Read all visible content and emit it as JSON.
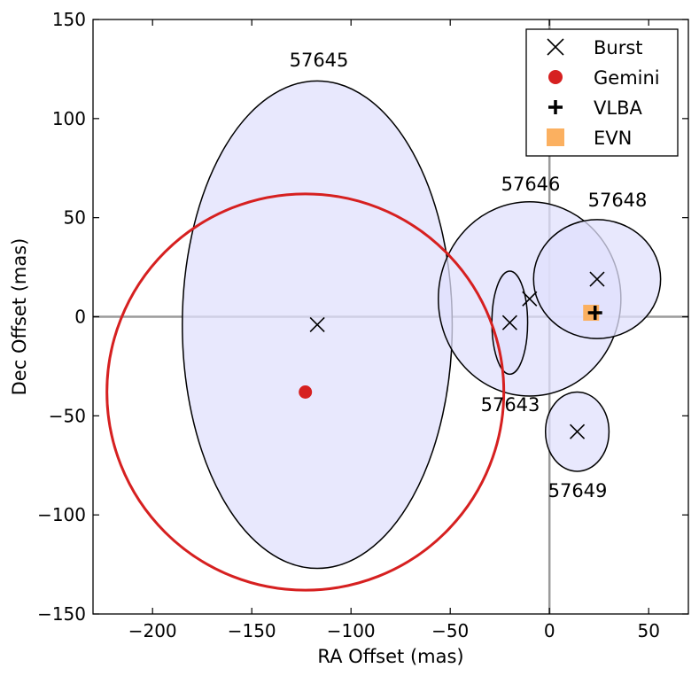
{
  "chart_data": {
    "type": "scatter",
    "xlabel": "RA Offset (mas)",
    "ylabel": "Dec Offset (mas)",
    "xlim": [
      -230,
      70
    ],
    "ylim": [
      -150,
      150
    ],
    "xticks": [
      -200,
      -150,
      -100,
      -50,
      0,
      50
    ],
    "yticks": [
      -150,
      -100,
      -50,
      0,
      50,
      100,
      150
    ],
    "xtick_labels": [
      "−200",
      "−150",
      "−100",
      "−50",
      "0",
      "50"
    ],
    "ytick_labels": [
      "−150",
      "−100",
      "−50",
      "0",
      "50",
      "100",
      "150"
    ],
    "reference_lines": {
      "x": 0,
      "y": 0
    },
    "burst_ellipses": [
      {
        "label": "57645",
        "x": -117,
        "y": -4,
        "rx": 68,
        "ry": 123
      },
      {
        "label": "57646",
        "x": -10,
        "y": 9,
        "rx": 46,
        "ry": 49
      },
      {
        "label": "57648",
        "x": 24,
        "y": 19,
        "rx": 32,
        "ry": 30
      },
      {
        "label": "57643",
        "x": -20,
        "y": -3,
        "rx": 9,
        "ry": 26
      },
      {
        "label": "57649",
        "x": 14,
        "y": -58,
        "rx": 16,
        "ry": 20
      }
    ],
    "gemini": {
      "x": -123,
      "y": -38,
      "radius": 100
    },
    "vlba": {
      "x": 23,
      "y": 2
    },
    "evn": {
      "x": 21,
      "y": 2
    },
    "legend": {
      "position": "top-right",
      "entries": [
        {
          "marker": "x-marker",
          "label": "Burst"
        },
        {
          "marker": "circle-marker",
          "label": "Gemini"
        },
        {
          "marker": "plus-marker",
          "label": "VLBA"
        },
        {
          "marker": "square-marker",
          "label": "EVN"
        }
      ]
    },
    "colors": {
      "ellipse_fill": "#e0e0fc",
      "ellipse_overlap": "#c8c8f8",
      "gemini": "#d62020",
      "evn": "#fbb060",
      "reference_line": "#9a9a9a"
    }
  }
}
